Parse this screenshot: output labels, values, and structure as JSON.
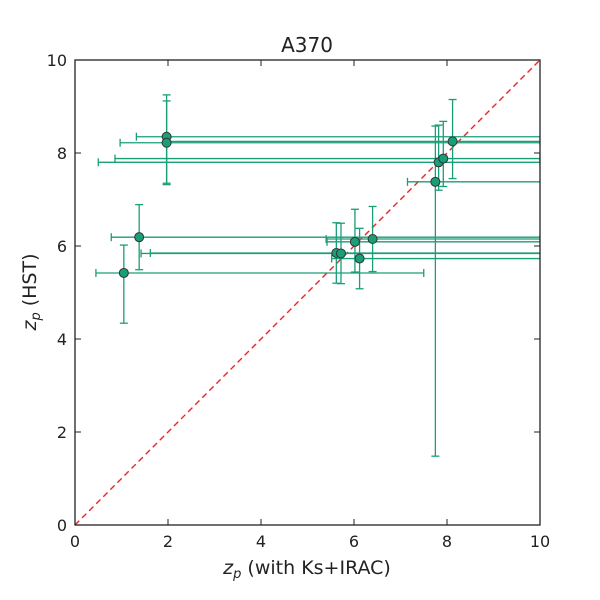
{
  "chart_data": {
    "type": "scatter",
    "title": "A370",
    "xlabel": {
      "var": "z",
      "sub": "p",
      "rest": " (with Ks+IRAC)"
    },
    "ylabel": {
      "var": "z",
      "sub": "p",
      "rest": " (HST)"
    },
    "xlim": [
      0,
      10
    ],
    "ylim": [
      0,
      10
    ],
    "xticks": [
      "0",
      "2",
      "4",
      "6",
      "8",
      "10"
    ],
    "yticks": [
      "0",
      "2",
      "4",
      "6",
      "8",
      "10"
    ],
    "grid": false,
    "reference_line": {
      "type": "y=x",
      "style": "dashed",
      "color": "#ee2222"
    },
    "series_color": "#1a9e77",
    "marker_edge_color": "#333333",
    "points": [
      {
        "x": 1.05,
        "y": 5.42,
        "xerr": [
          0.6,
          6.45
        ],
        "yerr": [
          1.08,
          0.6
        ]
      },
      {
        "x": 1.38,
        "y": 6.19,
        "xerr": [
          0.6,
          9.4
        ],
        "yerr": [
          0.7,
          0.7
        ]
      },
      {
        "x": 1.97,
        "y": 8.35,
        "xerr": [
          0.65,
          8.1
        ],
        "yerr": [
          1.0,
          0.9
        ]
      },
      {
        "x": 1.97,
        "y": 8.22,
        "xerr": [
          1.0,
          8.1
        ],
        "yerr": [
          0.9,
          0.9
        ]
      },
      {
        "x": 5.62,
        "y": 5.85,
        "xerr": [
          4.0,
          4.5
        ],
        "yerr": [
          0.65,
          0.65
        ]
      },
      {
        "x": 5.72,
        "y": 5.84,
        "xerr": [
          4.3,
          4.4
        ],
        "yerr": [
          0.65,
          0.65
        ]
      },
      {
        "x": 6.02,
        "y": 6.09,
        "xerr": [
          0.6,
          4.0
        ],
        "yerr": [
          0.65,
          0.7
        ]
      },
      {
        "x": 6.12,
        "y": 5.73,
        "xerr": [
          0.6,
          4.0
        ],
        "yerr": [
          0.65,
          0.65
        ]
      },
      {
        "x": 6.4,
        "y": 6.15,
        "xerr": [
          1.0,
          3.6
        ],
        "yerr": [
          0.7,
          0.7
        ]
      },
      {
        "x": 7.75,
        "y": 7.38,
        "xerr": [
          0.6,
          2.3
        ],
        "yerr": [
          5.9,
          1.2
        ]
      },
      {
        "x": 7.82,
        "y": 7.8,
        "xerr": [
          7.32,
          2.18
        ],
        "yerr": [
          0.6,
          0.8
        ]
      },
      {
        "x": 7.92,
        "y": 7.88,
        "xerr": [
          7.06,
          2.08
        ],
        "yerr": [
          0.6,
          0.8
        ]
      },
      {
        "x": 8.12,
        "y": 8.25,
        "xerr": [
          6.12,
          1.88
        ],
        "yerr": [
          0.8,
          0.9
        ]
      }
    ]
  }
}
